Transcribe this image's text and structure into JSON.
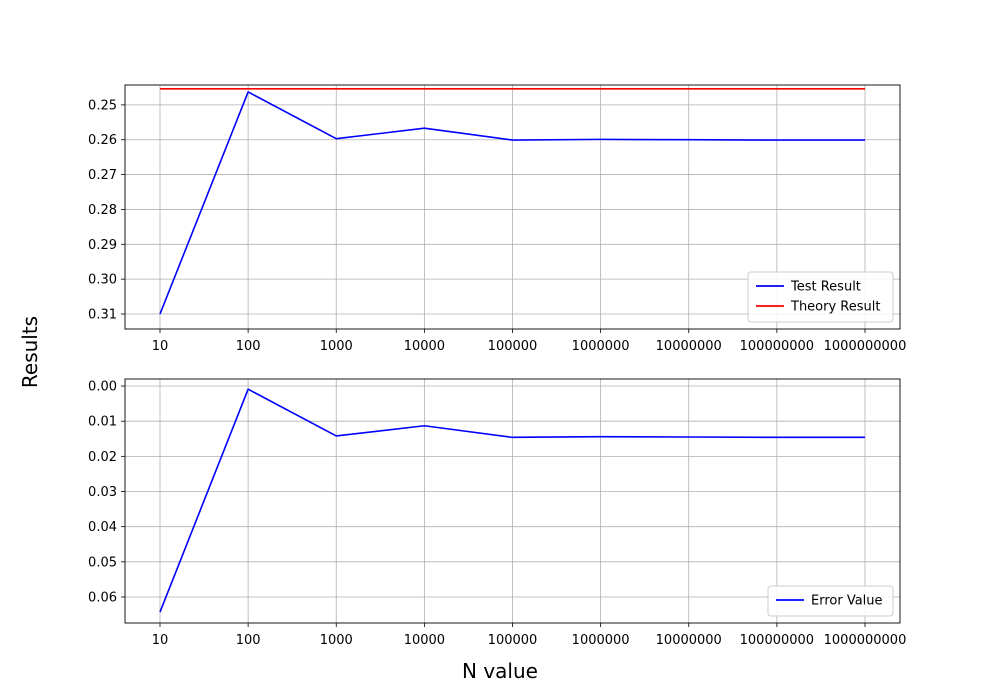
{
  "figure": {
    "supxlabel": "N value",
    "supylabel": "Results"
  },
  "chart_data": [
    {
      "type": "line",
      "x": [
        "10",
        "100",
        "1000",
        "10000",
        "100000",
        "1000000",
        "10000000",
        "100000000",
        "1000000000"
      ],
      "ylim": [
        0.3143,
        0.2443
      ],
      "y_inverted": true,
      "y_ticks": [
        "0.25",
        "0.26",
        "0.27",
        "0.28",
        "0.29",
        "0.30",
        "0.31"
      ],
      "grid": true,
      "legend_placement": "lower-right",
      "series": [
        {
          "name": "Test Result",
          "color": "#0000ff",
          "values": [
            0.31,
            0.2463,
            0.2597,
            0.2567,
            0.2601,
            0.2599,
            0.26,
            0.2601,
            0.2601
          ]
        },
        {
          "name": "Theory Result",
          "color": "#ff0000",
          "values": [
            0.2454,
            0.2454,
            0.2454,
            0.2454,
            0.2454,
            0.2454,
            0.2454,
            0.2454,
            0.2454
          ]
        }
      ]
    },
    {
      "type": "line",
      "x": [
        "10",
        "100",
        "1000",
        "10000",
        "100000",
        "1000000",
        "10000000",
        "100000000",
        "1000000000"
      ],
      "ylim": [
        0.0674,
        -0.002
      ],
      "y_inverted": true,
      "y_ticks": [
        "0.00",
        "0.01",
        "0.02",
        "0.03",
        "0.04",
        "0.05",
        "0.06"
      ],
      "grid": true,
      "legend_placement": "lower-right",
      "series": [
        {
          "name": "Error Value",
          "color": "#0000ff",
          "values": [
            0.0643,
            0.0009,
            0.0142,
            0.0113,
            0.0146,
            0.0144,
            0.0145,
            0.0146,
            0.0146
          ]
        }
      ]
    }
  ]
}
